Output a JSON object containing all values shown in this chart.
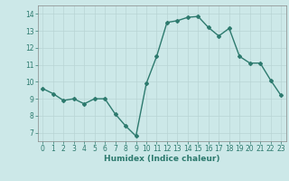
{
  "x": [
    0,
    1,
    2,
    3,
    4,
    5,
    6,
    7,
    8,
    9,
    10,
    11,
    12,
    13,
    14,
    15,
    16,
    17,
    18,
    19,
    20,
    21,
    22,
    23
  ],
  "y": [
    9.6,
    9.3,
    8.9,
    9.0,
    8.7,
    9.0,
    9.0,
    8.1,
    7.4,
    6.8,
    9.9,
    11.5,
    13.5,
    13.6,
    13.8,
    13.85,
    13.2,
    12.7,
    13.15,
    11.5,
    11.1,
    11.1,
    10.1,
    9.2
  ],
  "xlabel": "Humidex (Indice chaleur)",
  "xlim": [
    -0.5,
    23.5
  ],
  "ylim": [
    6.5,
    14.5
  ],
  "yticks": [
    7,
    8,
    9,
    10,
    11,
    12,
    13,
    14
  ],
  "xticks": [
    0,
    1,
    2,
    3,
    4,
    5,
    6,
    7,
    8,
    9,
    10,
    11,
    12,
    13,
    14,
    15,
    16,
    17,
    18,
    19,
    20,
    21,
    22,
    23
  ],
  "line_color": "#2d7a6e",
  "bg_color": "#cce8e8",
  "grid_color": "#b8d4d4",
  "marker": "D",
  "marker_size": 2.0,
  "line_width": 1.0,
  "tick_fontsize": 5.5,
  "xlabel_fontsize": 6.5
}
